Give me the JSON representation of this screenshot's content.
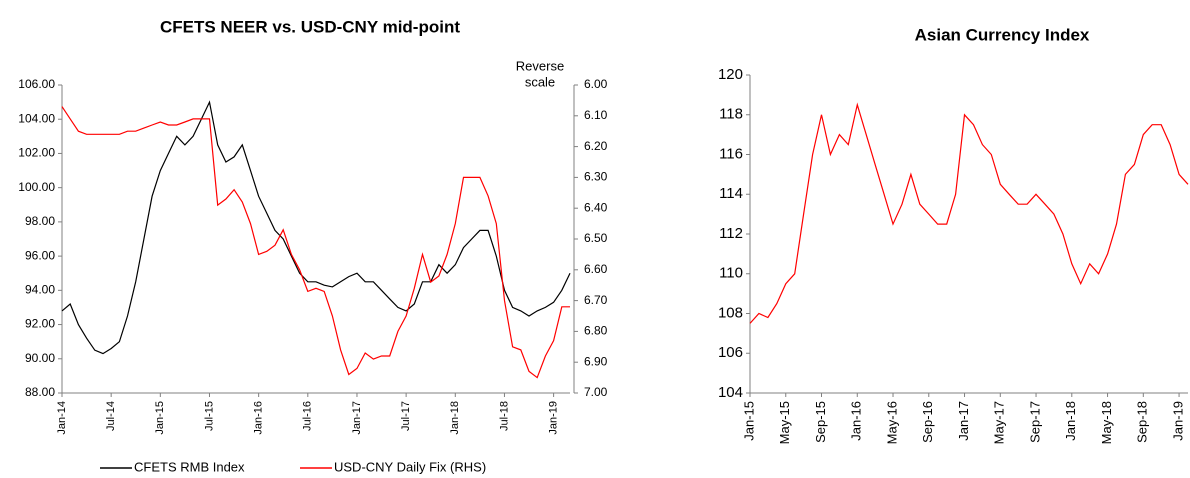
{
  "chart_data": [
    {
      "type": "line",
      "title": "CFETS NEER vs. USD-CNY mid-point",
      "annotations": [
        "Reverse",
        "scale"
      ],
      "legend": "bottom",
      "x": [
        "2014-01",
        "2014-02",
        "2014-03",
        "2014-04",
        "2014-05",
        "2014-06",
        "2014-07",
        "2014-08",
        "2014-09",
        "2014-10",
        "2014-11",
        "2014-12",
        "2015-01",
        "2015-02",
        "2015-03",
        "2015-04",
        "2015-05",
        "2015-06",
        "2015-07",
        "2015-08",
        "2015-09",
        "2015-10",
        "2015-11",
        "2015-12",
        "2016-01",
        "2016-02",
        "2016-03",
        "2016-04",
        "2016-05",
        "2016-06",
        "2016-07",
        "2016-08",
        "2016-09",
        "2016-10",
        "2016-11",
        "2016-12",
        "2017-01",
        "2017-02",
        "2017-03",
        "2017-04",
        "2017-05",
        "2017-06",
        "2017-07",
        "2017-08",
        "2017-09",
        "2017-10",
        "2017-11",
        "2017-12",
        "2018-01",
        "2018-02",
        "2018-03",
        "2018-04",
        "2018-05",
        "2018-06",
        "2018-07",
        "2018-08",
        "2018-09",
        "2018-10",
        "2018-11",
        "2018-12",
        "2019-01",
        "2019-02",
        "2019-03"
      ],
      "series": [
        {
          "name": "CFETS RMB Index",
          "color": "#000000",
          "values": [
            92.8,
            93.2,
            92,
            91.2,
            90.5,
            90.3,
            90.6,
            91,
            92.5,
            94.5,
            97,
            99.5,
            101,
            102,
            103,
            102.5,
            103,
            104,
            105,
            102.5,
            101.5,
            101.8,
            102.5,
            101,
            99.5,
            98.5,
            97.5,
            97,
            96,
            95,
            94.5,
            94.5,
            94.3,
            94.2,
            94.5,
            94.8,
            95,
            94.5,
            94.5,
            94,
            93.5,
            93,
            92.8,
            93.2,
            94.5,
            94.5,
            95.5,
            95,
            95.5,
            96.5,
            97,
            97.5,
            97.5,
            96,
            94,
            93,
            92.8,
            92.5,
            92.8,
            93,
            93.3,
            94,
            95
          ]
        },
        {
          "name": "USD-CNY Daily Fix (RHS)",
          "color": "#ff0000",
          "axis": "y2",
          "values": [
            6.07,
            6.11,
            6.15,
            6.16,
            6.16,
            6.16,
            6.16,
            6.16,
            6.15,
            6.15,
            6.14,
            6.13,
            6.12,
            6.13,
            6.13,
            6.12,
            6.11,
            6.11,
            6.11,
            6.39,
            6.37,
            6.34,
            6.38,
            6.45,
            6.55,
            6.54,
            6.52,
            6.47,
            6.55,
            6.6,
            6.67,
            6.66,
            6.67,
            6.75,
            6.86,
            6.94,
            6.92,
            6.87,
            6.89,
            6.88,
            6.88,
            6.8,
            6.75,
            6.66,
            6.55,
            6.64,
            6.62,
            6.55,
            6.45,
            6.3,
            6.3,
            6.3,
            6.36,
            6.45,
            6.7,
            6.85,
            6.86,
            6.93,
            6.95,
            6.88,
            6.83,
            6.72,
            6.72
          ]
        }
      ],
      "xlim": [
        "2014-01",
        "2019-03"
      ],
      "xticks": [
        {
          "value": "2014-01",
          "label": "Jan-14"
        },
        {
          "value": "2014-07",
          "label": "Jul-14"
        },
        {
          "value": "2015-01",
          "label": "Jan-15"
        },
        {
          "value": "2015-07",
          "label": "Jul-15"
        },
        {
          "value": "2016-01",
          "label": "Jan-16"
        },
        {
          "value": "2016-07",
          "label": "Jul-16"
        },
        {
          "value": "2017-01",
          "label": "Jan-17"
        },
        {
          "value": "2017-07",
          "label": "Jul-17"
        },
        {
          "value": "2018-01",
          "label": "Jan-18"
        },
        {
          "value": "2018-07",
          "label": "Jul-18"
        },
        {
          "value": "2019-01",
          "label": "Jan-19"
        }
      ],
      "ylim": [
        88,
        106
      ],
      "yticks": [
        {
          "value": 88,
          "label": "88.00"
        },
        {
          "value": 90,
          "label": "90.00"
        },
        {
          "value": 92,
          "label": "92.00"
        },
        {
          "value": 94,
          "label": "94.00"
        },
        {
          "value": 96,
          "label": "96.00"
        },
        {
          "value": 98,
          "label": "98.00"
        },
        {
          "value": 100,
          "label": "100.00"
        },
        {
          "value": 102,
          "label": "102.00"
        },
        {
          "value": 104,
          "label": "104.00"
        },
        {
          "value": 106,
          "label": "106.00"
        }
      ],
      "y2lim": [
        7,
        6
      ],
      "y2_reversed": true,
      "y2ticks": [
        {
          "value": 6,
          "label": "6.00"
        },
        {
          "value": 6.1,
          "label": "6.10"
        },
        {
          "value": 6.2,
          "label": "6.20"
        },
        {
          "value": 6.3,
          "label": "6.30"
        },
        {
          "value": 6.4,
          "label": "6.40"
        },
        {
          "value": 6.5,
          "label": "6.50"
        },
        {
          "value": 6.6,
          "label": "6.60"
        },
        {
          "value": 6.7,
          "label": "6.70"
        },
        {
          "value": 6.8,
          "label": "6.80"
        },
        {
          "value": 6.9,
          "label": "6.90"
        },
        {
          "value": 7,
          "label": "7.00"
        }
      ]
    },
    {
      "type": "line",
      "title": "Asian Currency Index",
      "color": "#ff0000",
      "x": [
        "2015-01",
        "2015-02",
        "2015-03",
        "2015-04",
        "2015-05",
        "2015-06",
        "2015-07",
        "2015-08",
        "2015-09",
        "2015-10",
        "2015-11",
        "2015-12",
        "2016-01",
        "2016-02",
        "2016-03",
        "2016-04",
        "2016-05",
        "2016-06",
        "2016-07",
        "2016-08",
        "2016-09",
        "2016-10",
        "2016-11",
        "2016-12",
        "2017-01",
        "2017-02",
        "2017-03",
        "2017-04",
        "2017-05",
        "2017-06",
        "2017-07",
        "2017-08",
        "2017-09",
        "2017-10",
        "2017-11",
        "2017-12",
        "2018-01",
        "2018-02",
        "2018-03",
        "2018-04",
        "2018-05",
        "2018-06",
        "2018-07",
        "2018-08",
        "2018-09",
        "2018-10",
        "2018-11",
        "2018-12",
        "2019-01",
        "2019-02"
      ],
      "values": [
        107.5,
        108,
        107.8,
        108.5,
        109.5,
        110,
        113,
        116,
        118,
        116,
        117,
        116.5,
        118.5,
        117,
        115.5,
        114,
        112.5,
        113.5,
        115,
        113.5,
        113,
        112.5,
        112.5,
        114,
        118,
        117.5,
        116.5,
        116,
        114.5,
        114,
        113.5,
        113.5,
        114,
        113.5,
        113,
        112,
        110.5,
        109.5,
        110.5,
        110,
        111,
        112.5,
        115,
        115.5,
        117,
        117.5,
        117.5,
        116.5,
        115,
        114.5
      ],
      "xlim": [
        "2015-01",
        "2019-02"
      ],
      "xticks": [
        {
          "value": "2015-01",
          "label": "Jan-15"
        },
        {
          "value": "2015-05",
          "label": "May-15"
        },
        {
          "value": "2015-09",
          "label": "Sep-15"
        },
        {
          "value": "2016-01",
          "label": "Jan-16"
        },
        {
          "value": "2016-05",
          "label": "May-16"
        },
        {
          "value": "2016-09",
          "label": "Sep-16"
        },
        {
          "value": "2017-01",
          "label": "Jan-17"
        },
        {
          "value": "2017-05",
          "label": "May-17"
        },
        {
          "value": "2017-09",
          "label": "Sep-17"
        },
        {
          "value": "2018-01",
          "label": "Jan-18"
        },
        {
          "value": "2018-05",
          "label": "May-18"
        },
        {
          "value": "2018-09",
          "label": "Sep-18"
        },
        {
          "value": "2019-01",
          "label": "Jan-19"
        }
      ],
      "ylim": [
        104,
        120
      ],
      "yticks": [
        104,
        106,
        108,
        110,
        112,
        114,
        116,
        118,
        120
      ]
    }
  ]
}
